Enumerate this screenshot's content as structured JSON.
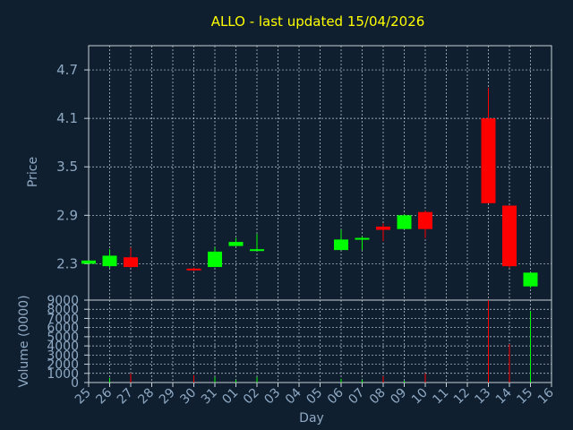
{
  "chart_data": {
    "type": "candlestick",
    "title": "ALLO - last updated 15/04/2026",
    "xlabel": "Day",
    "price_panel": {
      "ylabel": "Price",
      "yticks": [
        "2.3",
        "2.9",
        "3.5",
        "4.1",
        "4.7"
      ],
      "ylim": [
        1.85,
        5.0
      ]
    },
    "volume_panel": {
      "ylabel": "Volume (0000)",
      "yticks": [
        "0",
        "1000",
        "2000",
        "3000",
        "4000",
        "5000",
        "6000",
        "7000",
        "8000",
        "9000"
      ],
      "ylim": [
        0,
        9000
      ]
    },
    "categories": [
      "25",
      "26",
      "27",
      "28",
      "29",
      "30",
      "31",
      "01",
      "02",
      "03",
      "04",
      "05",
      "06",
      "07",
      "08",
      "09",
      "10",
      "11",
      "12",
      "13",
      "14",
      "15",
      "16"
    ],
    "candles": [
      {
        "day": "25",
        "open": 2.3,
        "close": 2.34,
        "high": 2.34,
        "low": 2.3,
        "volume": 0
      },
      {
        "day": "26",
        "open": 2.27,
        "close": 2.4,
        "high": 2.48,
        "low": 2.25,
        "volume": 500
      },
      {
        "day": "27",
        "open": 2.38,
        "close": 2.26,
        "high": 2.5,
        "low": 2.25,
        "volume": 1000
      },
      {
        "day": "30",
        "open": 2.24,
        "close": 2.22,
        "high": 2.25,
        "low": 2.21,
        "volume": 800
      },
      {
        "day": "31",
        "open": 2.26,
        "close": 2.45,
        "high": 2.5,
        "low": 2.26,
        "volume": 600
      },
      {
        "day": "01",
        "open": 2.52,
        "close": 2.57,
        "high": 2.62,
        "low": 2.52,
        "volume": 300
      },
      {
        "day": "02",
        "open": 2.47,
        "close": 2.48,
        "high": 2.67,
        "low": 2.46,
        "volume": 600
      },
      {
        "day": "06",
        "open": 2.47,
        "close": 2.6,
        "high": 2.72,
        "low": 2.47,
        "volume": 400
      },
      {
        "day": "07",
        "open": 2.6,
        "close": 2.62,
        "high": 2.64,
        "low": 2.47,
        "volume": 300
      },
      {
        "day": "08",
        "open": 2.76,
        "close": 2.72,
        "high": 2.8,
        "low": 2.58,
        "volume": 700
      },
      {
        "day": "09",
        "open": 2.73,
        "close": 2.9,
        "high": 2.91,
        "low": 2.73,
        "volume": 200
      },
      {
        "day": "10",
        "open": 2.94,
        "close": 2.73,
        "high": 2.96,
        "low": 2.62,
        "volume": 1000
      },
      {
        "day": "13",
        "open": 4.1,
        "close": 3.05,
        "high": 4.48,
        "low": 3.05,
        "volume": 9000
      },
      {
        "day": "14",
        "open": 3.02,
        "close": 2.27,
        "high": 3.02,
        "low": 2.25,
        "volume": 4200
      },
      {
        "day": "15",
        "open": 2.02,
        "close": 2.19,
        "high": 2.19,
        "low": 2.0,
        "volume": 7800
      }
    ],
    "colors": {
      "up": "#00ff00",
      "down": "#ff0000",
      "grid": "#c8d0d8",
      "axis": "#c8d0d8",
      "text": "#8fa9c3",
      "title": "#ffff00",
      "background": "#0f1f30"
    },
    "grid": true
  }
}
